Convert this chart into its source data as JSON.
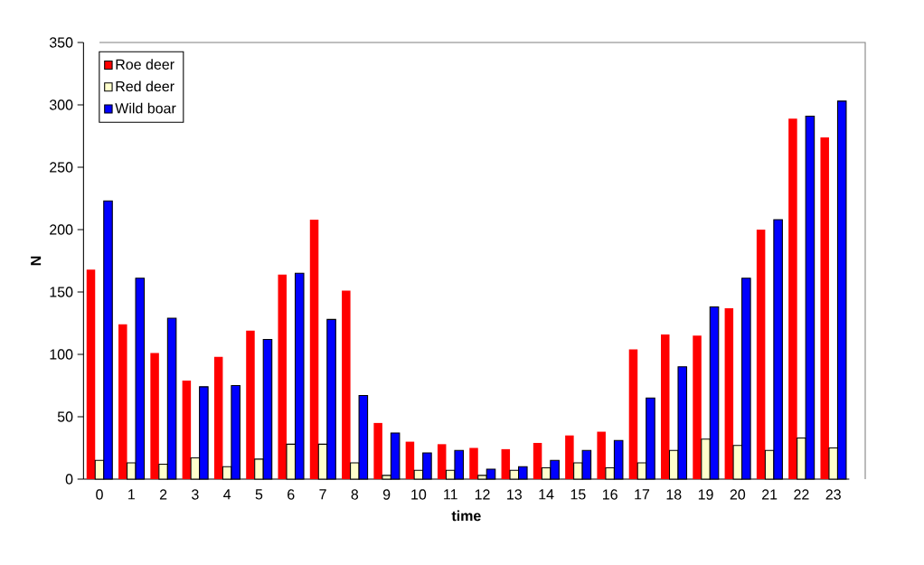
{
  "chart_data": {
    "type": "bar",
    "xlabel": "time",
    "ylabel": "N",
    "categories": [
      "0",
      "1",
      "2",
      "3",
      "4",
      "5",
      "6",
      "7",
      "8",
      "9",
      "10",
      "11",
      "12",
      "13",
      "14",
      "15",
      "16",
      "17",
      "18",
      "19",
      "20",
      "21",
      "22",
      "23"
    ],
    "series": [
      {
        "name": "Roe deer",
        "color": "#ff0000",
        "values": [
          168,
          124,
          101,
          79,
          98,
          119,
          164,
          208,
          151,
          45,
          30,
          28,
          25,
          24,
          29,
          35,
          38,
          104,
          116,
          115,
          137,
          200,
          289,
          274
        ]
      },
      {
        "name": "Red deer",
        "color": "#ffffcc",
        "values": [
          15,
          13,
          12,
          17,
          10,
          16,
          28,
          28,
          13,
          3,
          7,
          7,
          3,
          7,
          9,
          13,
          9,
          13,
          23,
          32,
          27,
          23,
          33,
          25
        ]
      },
      {
        "name": "Wild boar",
        "color": "#0000ff",
        "values": [
          223,
          161,
          129,
          74,
          75,
          112,
          165,
          128,
          67,
          37,
          21,
          23,
          8,
          10,
          15,
          23,
          31,
          65,
          90,
          138,
          161,
          208,
          291,
          303
        ]
      }
    ],
    "ylim": [
      0,
      350
    ],
    "yticks": [
      0,
      50,
      100,
      150,
      200,
      250,
      300,
      350
    ],
    "grid": false,
    "legend": "top left"
  }
}
